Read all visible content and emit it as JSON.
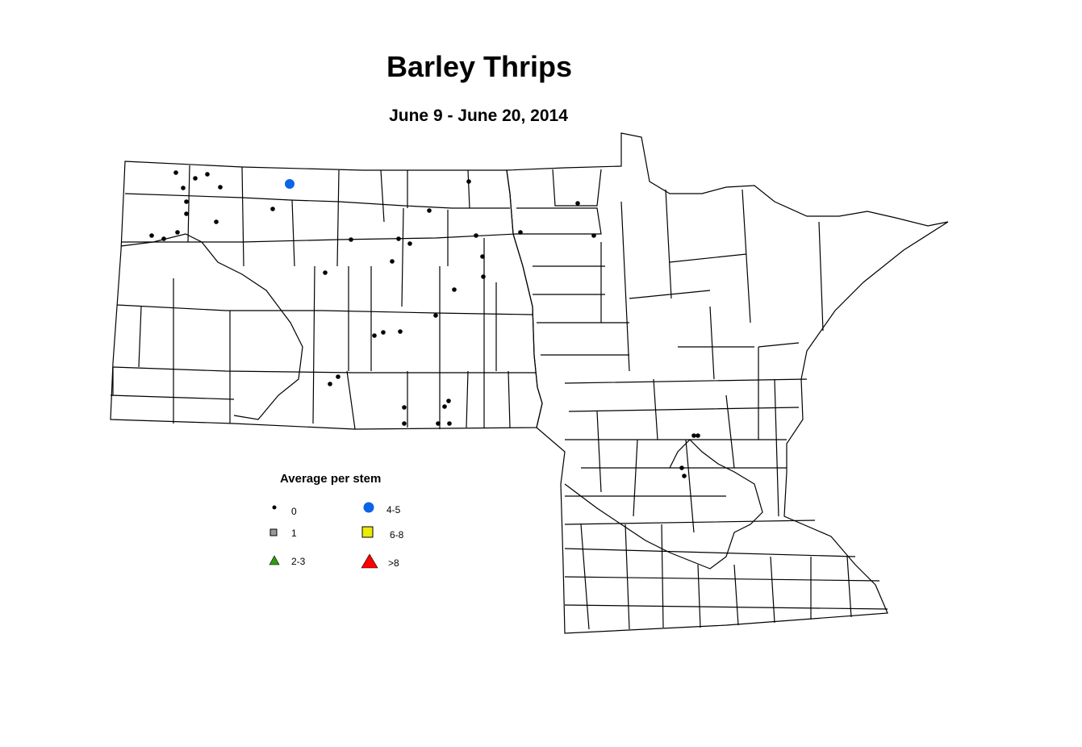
{
  "title": "Barley Thrips",
  "subtitle": "June 9 - June 20, 2014",
  "legend": {
    "title": "Average per stem",
    "classes": [
      {
        "label": "0",
        "symbol": "dot",
        "color": "#000000"
      },
      {
        "label": "1",
        "symbol": "square",
        "color": "#999999"
      },
      {
        "label": "2-3",
        "symbol": "triangle",
        "color": "#2e9b10"
      },
      {
        "label": "4-5",
        "symbol": "circle",
        "color": "#0a64e6"
      },
      {
        "label": "6-8",
        "symbol": "square",
        "color": "#ebeb00"
      },
      {
        "label": ">8",
        "symbol": "triangle",
        "color": "#ff0000"
      }
    ]
  }
}
